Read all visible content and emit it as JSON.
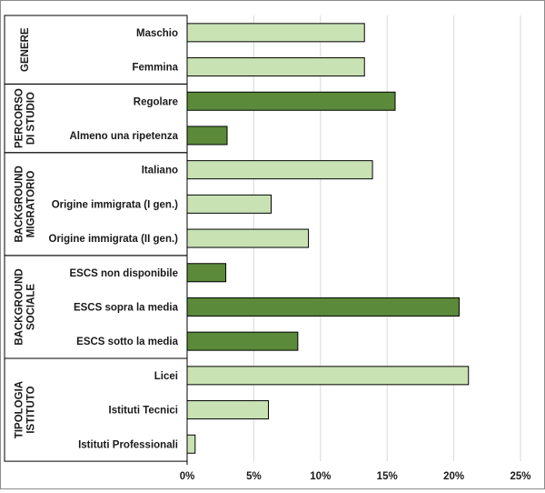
{
  "chart_data": {
    "type": "bar",
    "orientation": "horizontal",
    "groups": [
      {
        "name": "GENERE",
        "lines": [
          "GENERE"
        ],
        "categories": [
          {
            "label": "Maschio",
            "value": 13.3,
            "color": "light"
          },
          {
            "label": "Femmina",
            "value": 13.3,
            "color": "light"
          }
        ]
      },
      {
        "name": "PERCORSO DI STUDIO",
        "lines": [
          "PERCORSO",
          "DI STUDIO"
        ],
        "categories": [
          {
            "label": "Regolare",
            "value": 15.6,
            "color": "dark"
          },
          {
            "label": "Almeno una ripetenza",
            "value": 3.0,
            "color": "dark"
          }
        ]
      },
      {
        "name": "BACKGROUND MIGRATORIO",
        "lines": [
          "BACKGROUND",
          "MIGRATORIO"
        ],
        "categories": [
          {
            "label": "Italiano",
            "value": 13.9,
            "color": "light"
          },
          {
            "label": "Origine immigrata (I gen.)",
            "value": 6.3,
            "color": "light"
          },
          {
            "label": "Origine immigrata (II gen.)",
            "value": 9.1,
            "color": "light"
          }
        ]
      },
      {
        "name": "BACKGROUND SOCIALE",
        "lines": [
          "BACKGROUND",
          "SOCIALE"
        ],
        "categories": [
          {
            "label": "ESCS non disponibile",
            "value": 2.9,
            "color": "dark"
          },
          {
            "label": "ESCS sopra la media",
            "value": 20.4,
            "color": "dark"
          },
          {
            "label": "ESCS sotto la media",
            "value": 8.3,
            "color": "dark"
          }
        ]
      },
      {
        "name": "TIPOLOGIA ISTITUTO",
        "lines": [
          "TIPOLOGIA",
          "ISTITUTO"
        ],
        "categories": [
          {
            "label": "Licei",
            "value": 21.1,
            "color": "light"
          },
          {
            "label": "Istituti Tecnici",
            "value": 6.1,
            "color": "light"
          },
          {
            "label": "Istituti Professionali",
            "value": 0.6,
            "color": "light"
          }
        ]
      }
    ],
    "xlim": [
      0,
      25
    ],
    "xticks": [
      0,
      5,
      10,
      15,
      20,
      25
    ],
    "xtick_labels": [
      "0%",
      "5%",
      "10%",
      "15%",
      "20%",
      "25%"
    ],
    "grid": "vertical",
    "legend": "none",
    "colors": {
      "light": "#c9e2b4",
      "dark": "#5b8a3a",
      "bar_border": "#000000",
      "grid": "#d9d9d9"
    }
  }
}
